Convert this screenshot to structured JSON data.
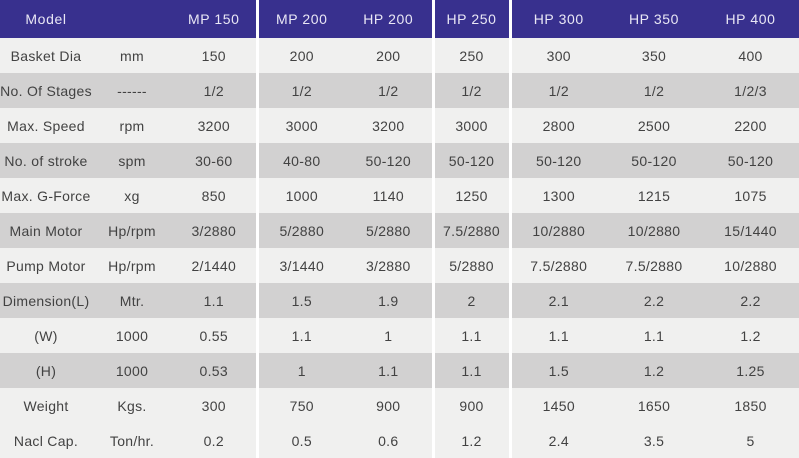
{
  "table": {
    "colors": {
      "header_bg": "#38308e",
      "header_text": "#e9e7f5",
      "row_light": "#f0f0ef",
      "row_dark": "#d2d1d1",
      "body_text": "#424242",
      "divider": "#ffffff"
    },
    "header": {
      "model_label": "Model",
      "unit_header": "",
      "columns": [
        "MP 150",
        "MP 200",
        "HP 200",
        "HP 250",
        "HP 300",
        "HP 350",
        "HP 400"
      ]
    },
    "rows": [
      {
        "label": "Basket Dia",
        "unit": "mm",
        "shade": "light",
        "values": [
          "150",
          "200",
          "200",
          "250",
          "300",
          "350",
          "400"
        ]
      },
      {
        "label": "No. Of Stages",
        "unit": "------",
        "shade": "dark",
        "values": [
          "1/2",
          "1/2",
          "1/2",
          "1/2",
          "1/2",
          "1/2",
          "1/2/3"
        ]
      },
      {
        "label": "Max. Speed",
        "unit": "rpm",
        "shade": "light",
        "values": [
          "3200",
          "3000",
          "3200",
          "3000",
          "2800",
          "2500",
          "2200"
        ]
      },
      {
        "label": "No. of stroke",
        "unit": "spm",
        "shade": "dark",
        "values": [
          "30-60",
          "40-80",
          "50-120",
          "50-120",
          "50-120",
          "50-120",
          "50-120"
        ]
      },
      {
        "label": "Max. G-Force",
        "unit": "xg",
        "shade": "light",
        "values": [
          "850",
          "1000",
          "1140",
          "1250",
          "1300",
          "1215",
          "1075"
        ]
      },
      {
        "label": "Main Motor",
        "unit": "Hp/rpm",
        "shade": "dark",
        "values": [
          "3/2880",
          "5/2880",
          "5/2880",
          "7.5/2880",
          "10/2880",
          "10/2880",
          "15/1440"
        ]
      },
      {
        "label": "Pump Motor",
        "unit": "Hp/rpm",
        "shade": "light",
        "values": [
          "2/1440",
          "3/1440",
          "3/2880",
          "5/2880",
          "7.5/2880",
          "7.5/2880",
          "10/2880"
        ]
      },
      {
        "label": "Dimension(L)",
        "unit": "Mtr.",
        "shade": "dark",
        "values": [
          "1.1",
          "1.5",
          "1.9",
          "2",
          "2.1",
          "2.2",
          "2.2"
        ]
      },
      {
        "label": "(W)",
        "unit": "1000",
        "shade": "light",
        "values": [
          "0.55",
          "1.1",
          "1",
          "1.1",
          "1.1",
          "1.1",
          "1.2"
        ]
      },
      {
        "label": "(H)",
        "unit": "1000",
        "shade": "dark",
        "values": [
          "0.53",
          "1",
          "1.1",
          "1.1",
          "1.5",
          "1.2",
          "1.25"
        ]
      },
      {
        "label": "Weight",
        "unit": "Kgs.",
        "shade": "light",
        "values": [
          "300",
          "750",
          "900",
          "900",
          "1450",
          "1650",
          "1850"
        ]
      },
      {
        "label": "Nacl Cap.",
        "unit": "Ton/hr.",
        "shade": "light",
        "values": [
          "0.2",
          "0.5",
          "0.6",
          "1.2",
          "2.4",
          "3.5",
          "5"
        ]
      }
    ]
  }
}
